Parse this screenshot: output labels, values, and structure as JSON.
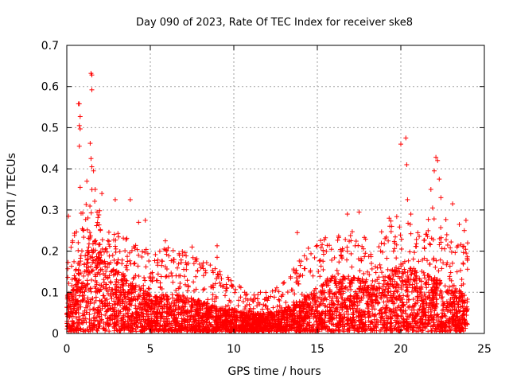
{
  "chart_data": {
    "type": "scatter",
    "title": "Day 090 of 2023, Rate Of TEC Index for receiver ske8",
    "xlabel": "GPS time / hours",
    "ylabel": "ROTI / TECUs",
    "xlim": [
      0,
      25
    ],
    "ylim": [
      0,
      0.7
    ],
    "xticks": [
      0,
      5,
      10,
      15,
      20,
      25
    ],
    "yticks": [
      0,
      0.1,
      0.2,
      0.3,
      0.4,
      0.5,
      0.6,
      0.7
    ],
    "xtick_labels": [
      "0",
      "5",
      "10",
      "15",
      "20",
      "25"
    ],
    "ytick_labels": [
      "0",
      "0.1",
      "0.2",
      "0.3",
      "0.4",
      "0.5",
      "0.6",
      "0.7"
    ],
    "grid": true,
    "marker": "plus",
    "series_color": "#ff0000",
    "envelope": {
      "x": [
        0,
        0.5,
        1.0,
        1.5,
        2.0,
        2.5,
        3.0,
        4.0,
        5.0,
        6.0,
        7.0,
        8.0,
        9.0,
        10.0,
        11.0,
        12.0,
        13.0,
        14.0,
        15.0,
        16.0,
        17.0,
        18.0,
        19.0,
        19.5,
        20.0,
        21.0,
        22.0,
        22.5,
        23.0,
        24.0
      ],
      "typical": [
        0.06,
        0.1,
        0.14,
        0.16,
        0.14,
        0.12,
        0.1,
        0.08,
        0.06,
        0.06,
        0.06,
        0.05,
        0.04,
        0.035,
        0.03,
        0.03,
        0.035,
        0.05,
        0.07,
        0.09,
        0.09,
        0.08,
        0.09,
        0.1,
        0.11,
        0.1,
        0.09,
        0.08,
        0.07,
        0.06
      ],
      "upper": [
        0.18,
        0.24,
        0.32,
        0.34,
        0.32,
        0.26,
        0.24,
        0.21,
        0.2,
        0.2,
        0.19,
        0.17,
        0.15,
        0.12,
        0.09,
        0.09,
        0.12,
        0.18,
        0.22,
        0.23,
        0.24,
        0.22,
        0.25,
        0.27,
        0.28,
        0.24,
        0.29,
        0.3,
        0.22,
        0.2
      ]
    },
    "highlights": [
      {
        "x": 1.45,
        "y": 0.632
      },
      {
        "x": 1.5,
        "y": 0.628
      },
      {
        "x": 1.5,
        "y": 0.592
      },
      {
        "x": 0.7,
        "y": 0.558
      },
      {
        "x": 0.75,
        "y": 0.558
      },
      {
        "x": 0.8,
        "y": 0.527
      },
      {
        "x": 0.75,
        "y": 0.505
      },
      {
        "x": 0.8,
        "y": 0.497
      },
      {
        "x": 0.75,
        "y": 0.455
      },
      {
        "x": 1.4,
        "y": 0.462
      },
      {
        "x": 1.45,
        "y": 0.425
      },
      {
        "x": 1.5,
        "y": 0.405
      },
      {
        "x": 1.6,
        "y": 0.395
      },
      {
        "x": 0.8,
        "y": 0.355
      },
      {
        "x": 1.2,
        "y": 0.37
      },
      {
        "x": 1.7,
        "y": 0.35
      },
      {
        "x": 2.1,
        "y": 0.34
      },
      {
        "x": 0.1,
        "y": 0.285
      },
      {
        "x": 2.9,
        "y": 0.325
      },
      {
        "x": 3.8,
        "y": 0.325
      },
      {
        "x": 4.3,
        "y": 0.27
      },
      {
        "x": 4.7,
        "y": 0.275
      },
      {
        "x": 5.9,
        "y": 0.225
      },
      {
        "x": 7.5,
        "y": 0.21
      },
      {
        "x": 9.0,
        "y": 0.213
      },
      {
        "x": 9.0,
        "y": 0.185
      },
      {
        "x": 13.8,
        "y": 0.245
      },
      {
        "x": 16.8,
        "y": 0.29
      },
      {
        "x": 17.5,
        "y": 0.295
      },
      {
        "x": 19.3,
        "y": 0.28
      },
      {
        "x": 20.3,
        "y": 0.475
      },
      {
        "x": 20.0,
        "y": 0.46
      },
      {
        "x": 20.35,
        "y": 0.41
      },
      {
        "x": 20.4,
        "y": 0.325
      },
      {
        "x": 20.6,
        "y": 0.29
      },
      {
        "x": 22.1,
        "y": 0.428
      },
      {
        "x": 22.2,
        "y": 0.42
      },
      {
        "x": 22.0,
        "y": 0.395
      },
      {
        "x": 22.3,
        "y": 0.375
      },
      {
        "x": 21.8,
        "y": 0.35
      },
      {
        "x": 22.4,
        "y": 0.33
      },
      {
        "x": 21.9,
        "y": 0.305
      },
      {
        "x": 23.1,
        "y": 0.315
      },
      {
        "x": 23.5,
        "y": 0.265
      },
      {
        "x": 23.9,
        "y": 0.275
      },
      {
        "x": 23.8,
        "y": 0.25
      },
      {
        "x": 24.0,
        "y": 0.22
      }
    ]
  }
}
